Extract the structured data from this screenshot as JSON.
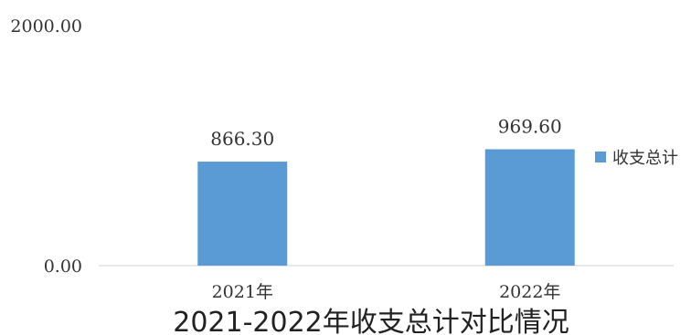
{
  "chart_data": {
    "type": "bar",
    "title": "2021-2022年收支总计对比情况",
    "categories": [
      "2021年",
      "2022年"
    ],
    "series": [
      {
        "name": "收支总计",
        "values": [
          866.3,
          969.6
        ],
        "value_labels": [
          "866.30",
          "969.60"
        ],
        "color": "#5B9BD5"
      }
    ],
    "ylim": [
      0,
      2000
    ],
    "y_tick_labels": [
      "0.00",
      "2000.00"
    ],
    "grid": false,
    "legend_position": "right",
    "xlabel": "",
    "ylabel": ""
  }
}
